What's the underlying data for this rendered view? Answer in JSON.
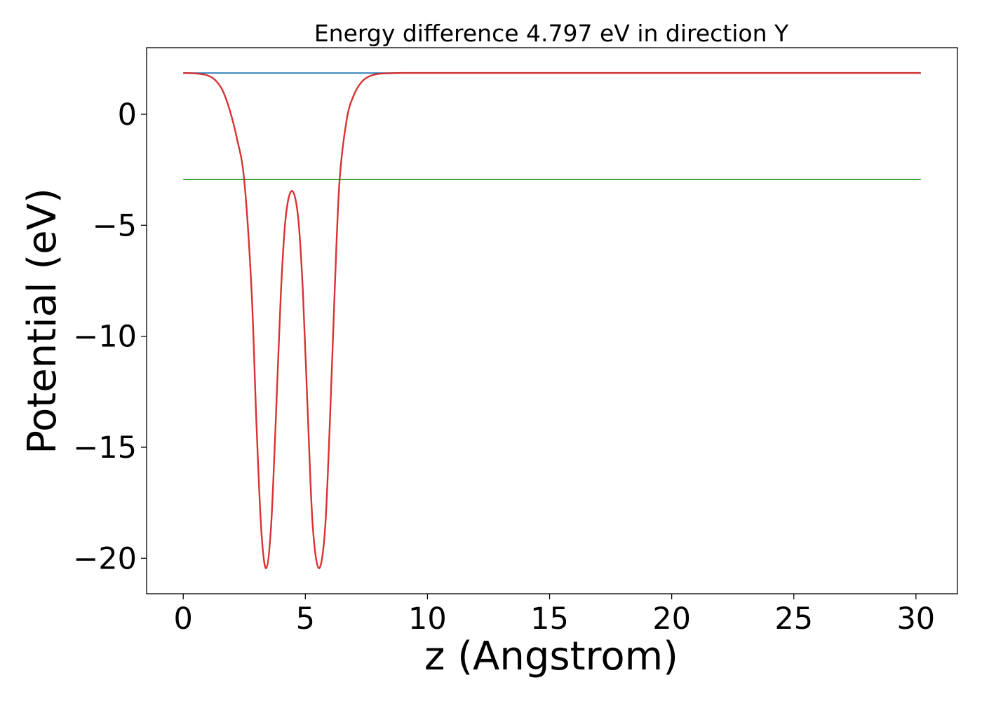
{
  "chart_data": {
    "type": "line",
    "title": "Energy difference 4.797 eV in direction Y",
    "xlabel": "z (Angstrom)",
    "ylabel": "Potential (eV)",
    "xlim": [
      -1.5,
      31.7
    ],
    "ylim": [
      -21.6,
      3.0
    ],
    "x_ticks": [
      0,
      5,
      10,
      15,
      20,
      25,
      30
    ],
    "y_ticks": [
      0,
      -5,
      -10,
      -15,
      -20
    ],
    "x_tick_labels": [
      "0",
      "5",
      "10",
      "15",
      "20",
      "25",
      "30"
    ],
    "y_tick_labels": [
      "0",
      "−5",
      "−10",
      "−15",
      "−20"
    ],
    "grid": false,
    "legend": "none",
    "series": [
      {
        "color": "#1f77b4",
        "style": "horizontal",
        "x": [
          0,
          30.2
        ],
        "y": [
          1.86,
          1.86
        ]
      },
      {
        "color": "#2ca02c",
        "style": "horizontal",
        "x": [
          0,
          30.2
        ],
        "y": [
          -2.94,
          -2.94
        ]
      },
      {
        "color": "#d62728",
        "style": "curve",
        "x": [
          0,
          0.5,
          1.0,
          1.3,
          1.6,
          1.9,
          2.2,
          2.5,
          2.8,
          3.0,
          3.2,
          3.4,
          3.6,
          3.8,
          4.0,
          4.2,
          4.45,
          4.7,
          4.9,
          5.1,
          5.3,
          5.55,
          5.8,
          6.0,
          6.2,
          6.4,
          6.7,
          7.0,
          7.3,
          7.6,
          8.0,
          8.5,
          9.0,
          9.5,
          10.0,
          12.0,
          15.0,
          20.0,
          25.0,
          30.2
        ],
        "y": [
          1.86,
          1.84,
          1.75,
          1.55,
          1.1,
          0.2,
          -1.1,
          -3.0,
          -8.0,
          -14.0,
          -18.8,
          -20.45,
          -18.5,
          -13.5,
          -8.0,
          -4.6,
          -3.45,
          -4.6,
          -8.0,
          -13.5,
          -18.5,
          -20.45,
          -18.8,
          -14.0,
          -8.0,
          -3.0,
          -0.2,
          0.9,
          1.45,
          1.7,
          1.82,
          1.85,
          1.86,
          1.86,
          1.86,
          1.86,
          1.86,
          1.86,
          1.86,
          1.86
        ]
      }
    ]
  }
}
